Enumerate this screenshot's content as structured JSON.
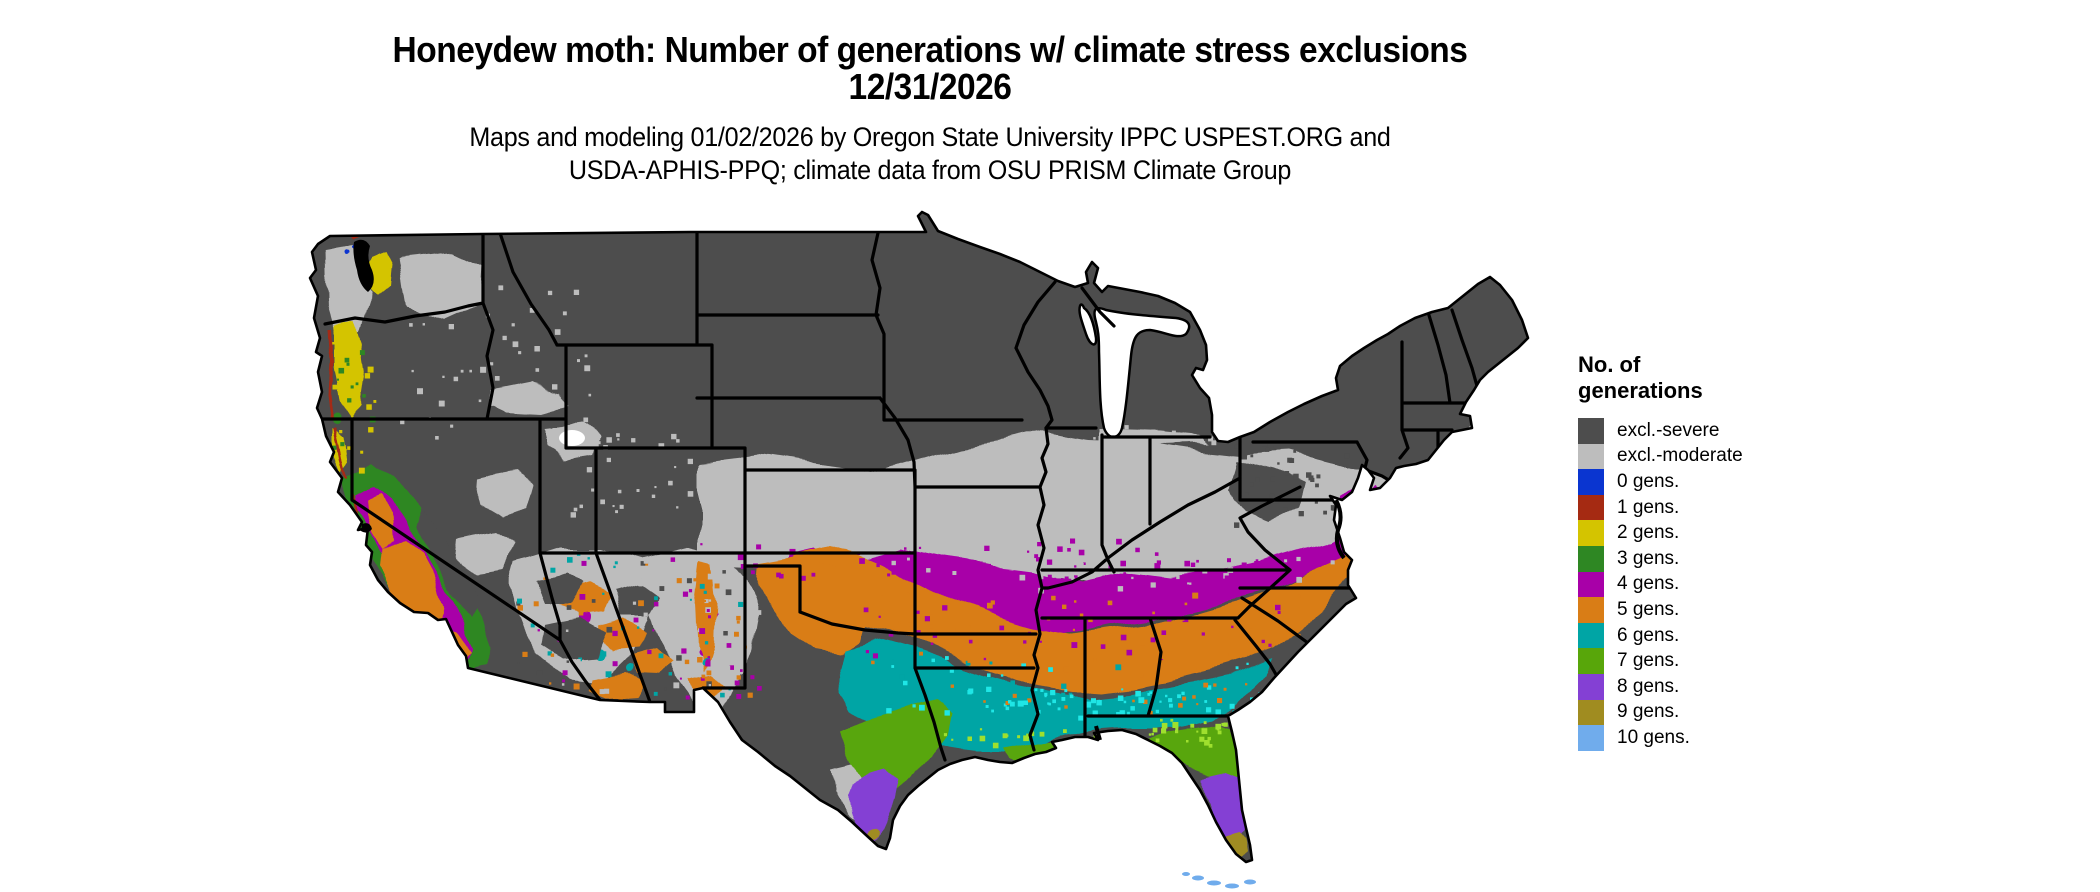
{
  "title": {
    "line1": "Honeydew moth: Number of generations w/ climate stress exclusions",
    "line2": "12/31/2026"
  },
  "credits": {
    "line1": "Maps and modeling 01/02/2026 by Oregon State University IPPC USPEST.ORG and",
    "line2": "USDA-APHIS-PPQ; climate data from OSU PRISM Climate Group"
  },
  "legend": {
    "title_line1": "No. of",
    "title_line2": "generations",
    "entries": [
      {
        "key": "severe",
        "label": "excl.-severe",
        "color": "#4D4D4D"
      },
      {
        "key": "moderate",
        "label": "excl.-moderate",
        "color": "#BDBDBD"
      },
      {
        "key": "gen0",
        "label": "0 gens.",
        "color": "#0A35D0"
      },
      {
        "key": "gen1",
        "label": "1 gens.",
        "color": "#A52A12"
      },
      {
        "key": "gen2",
        "label": "2 gens.",
        "color": "#D4C400"
      },
      {
        "key": "gen3",
        "label": "3 gens.",
        "color": "#2E8723"
      },
      {
        "key": "gen4",
        "label": "4 gens.",
        "color": "#A800A8"
      },
      {
        "key": "gen5",
        "label": "5 gens.",
        "color": "#D97D16"
      },
      {
        "key": "gen6",
        "label": "6 gens.",
        "color": "#00A5A5"
      },
      {
        "key": "gen7",
        "label": "7 gens.",
        "color": "#58A60A"
      },
      {
        "key": "gen8",
        "label": "8 gens.",
        "color": "#8440D4"
      },
      {
        "key": "gen9",
        "label": "9 gens.",
        "color": "#A08C20"
      },
      {
        "key": "gen10",
        "label": "10 gens.",
        "color": "#70ACEC"
      }
    ]
  },
  "fringe_colors": {
    "teal_fringe": "#1FE6E6",
    "green_fringe": "#9FE02E"
  },
  "map_data": {
    "type": "choropleth",
    "region": "Contiguous United States with state borders",
    "variable": "Number of generations with climate stress exclusions",
    "date": "12/31/2026",
    "class_extents": [
      {
        "class": "excl.-severe",
        "where": "Northern tier and interior West: WA east, ID, MT, WY, Dakotas, MN, WI, MI, northern NY and New England, Rockies, Sierra Nevada, Appalachian highs"
      },
      {
        "class": "excl.-moderate",
        "where": "Central band: KS, MO, IL, IN, OH, KY, VA, PA, NJ, coastal New England; Columbia and Snake basins, NV/UT/AZ/NM lowlands, west TX, south TX wedge"
      },
      {
        "class": "0 gens.",
        "where": "isolated specks near Pacific Northwest coast"
      },
      {
        "class": "1 gens.",
        "where": "thin Pacific coastal strip WA-OR-N CA"
      },
      {
        "class": "2 gens.",
        "where": "Puget lowlands and Willamette Valley, coastal OR / N CA fringes"
      },
      {
        "class": "3 gens.",
        "where": "California Coast Ranges and Sierra foothill ring; small Delaware/Chesapeake specks"
      },
      {
        "class": "4 gens.",
        "where": "Band from S Missouri across TN and N AL/GA to the Carolinas piedmont and Delmarva; rim of California Central Valley; pockets in OK and the Southwest"
      },
      {
        "class": "5 gens.",
        "where": "OK and N TX through AR and central MS/AL/GA to coastal Carolinas; San Joaquin Valley and S CA; AZ/NM mid-elevations"
      },
      {
        "class": "6 gens.",
        "where": "Gulf band: central TX, LA, S MS/AL, S GA, FL panhandle, coastal SC/GA"
      },
      {
        "class": "7 gens.",
        "where": "South-central TX, S Louisiana delta fringe, north-central Florida peninsula"
      },
      {
        "class": "8 gens.",
        "where": "Rio Grande Valley of TX and central-south Florida peninsula"
      },
      {
        "class": "9 gens.",
        "where": "Southern tip of Florida and mouth of the Rio Grande"
      },
      {
        "class": "10 gens.",
        "where": "Florida Keys"
      }
    ]
  }
}
